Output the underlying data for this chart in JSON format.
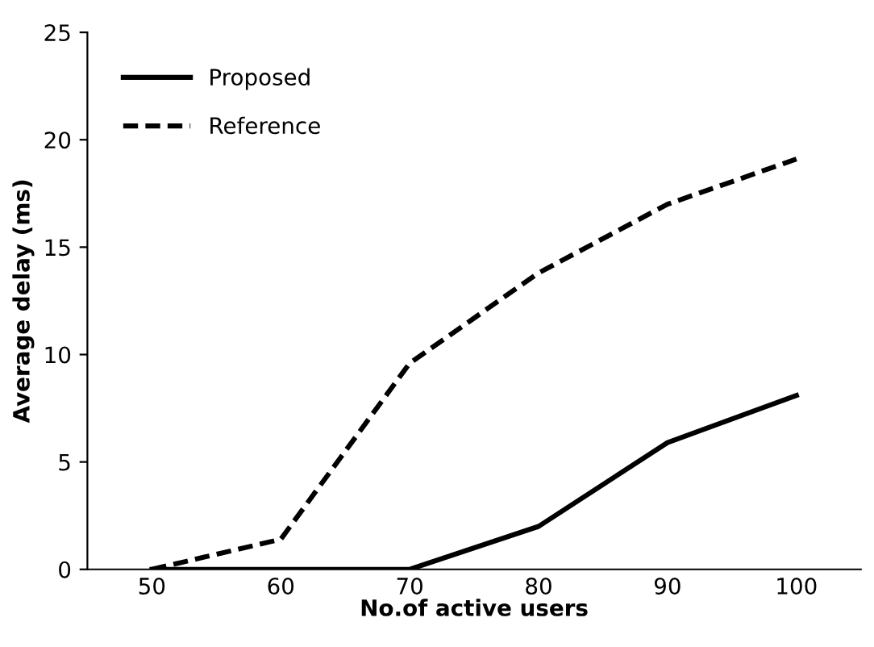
{
  "chart_data": {
    "type": "line",
    "xlabel": "No.of active users",
    "ylabel": "Average delay (ms)",
    "categories": [
      "50",
      "60",
      "70",
      "80",
      "90",
      "100"
    ],
    "series": [
      {
        "name": "Proposed",
        "color": "#000000",
        "line_style": "solid",
        "values": [
          0,
          0,
          0,
          2.0,
          5.9,
          8.1
        ]
      },
      {
        "name": "Reference",
        "color": "#000000",
        "line_style": "dashed",
        "values": [
          0,
          1.4,
          9.6,
          13.8,
          17.0,
          19.1
        ]
      }
    ],
    "ylim": [
      0,
      25
    ],
    "yticks": [
      0,
      5,
      10,
      15,
      20,
      25
    ],
    "grid": false,
    "legend": "top left",
    "marker": "none"
  }
}
